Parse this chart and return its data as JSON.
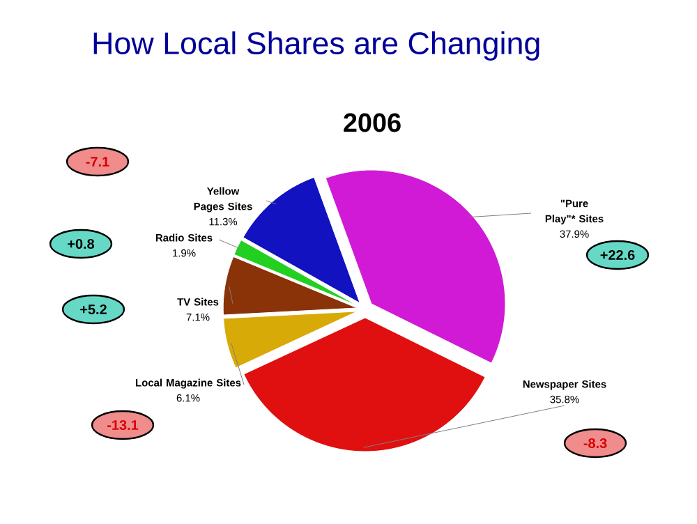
{
  "chart_data": {
    "type": "pie",
    "title": "How Local Shares are Changing",
    "subtitle": "2006",
    "categories": [
      "\"Pure Play\"* Sites",
      "Newspaper Sites",
      "Local Magazine Sites",
      "TV Sites",
      "Radio Sites",
      "Yellow Pages Sites"
    ],
    "values": [
      37.9,
      35.8,
      6.1,
      7.1,
      1.9,
      11.3
    ],
    "value_labels": [
      "37.9%",
      "35.8%",
      "6.1%",
      "7.1%",
      "1.9%",
      "11.3%"
    ],
    "colors": [
      "#d01ad6",
      "#e01010",
      "#d8aa08",
      "#8a3208",
      "#22d022",
      "#1212c0"
    ],
    "annotations": [
      "+22.6",
      "-8.3",
      "-13.1",
      "+5.2",
      "+0.8",
      "-7.1"
    ]
  }
}
